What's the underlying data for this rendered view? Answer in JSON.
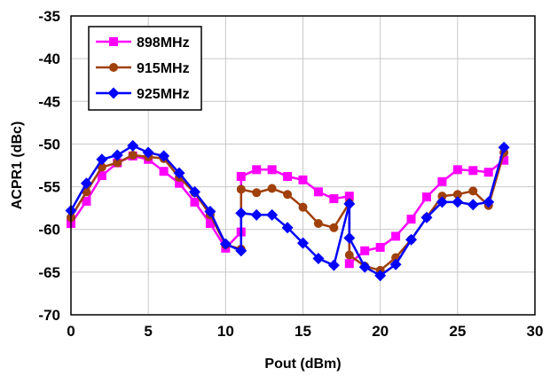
{
  "chart_data": {
    "type": "line",
    "xlabel": "Pout (dBm)",
    "ylabel": "ACPR1 (dBc)",
    "xlim": [
      0,
      30
    ],
    "ylim": [
      -70,
      -35
    ],
    "xticks": [
      0,
      5,
      10,
      15,
      20,
      25,
      30
    ],
    "yticks": [
      -35,
      -40,
      -45,
      -50,
      -55,
      -60,
      -65,
      -70
    ],
    "grid": true,
    "legend_position": "top-left",
    "series": [
      {
        "name": "898MHz",
        "color": "#ff00ff",
        "marker": "square",
        "points": [
          [
            0,
            -59.3
          ],
          [
            1,
            -56.7
          ],
          [
            2,
            -53.7
          ],
          [
            3,
            -52.2
          ],
          [
            4,
            -51.4
          ],
          [
            5,
            -51.8
          ],
          [
            6,
            -53.2
          ],
          [
            7,
            -54.6
          ],
          [
            8,
            -56.8
          ],
          [
            9,
            -59.3
          ],
          [
            10,
            -62.2
          ],
          [
            11,
            -60.3
          ],
          [
            11,
            -53.8
          ],
          [
            12,
            -53.0
          ],
          [
            13,
            -53.0
          ],
          [
            14,
            -53.8
          ],
          [
            15,
            -54.2
          ],
          [
            16,
            -55.6
          ],
          [
            17,
            -56.4
          ],
          [
            18,
            -56.1
          ],
          [
            18,
            -64.0
          ],
          [
            19,
            -62.5
          ],
          [
            20,
            -62.1
          ],
          [
            21,
            -60.8
          ],
          [
            22,
            -58.8
          ],
          [
            23,
            -56.2
          ],
          [
            24,
            -54.4
          ],
          [
            25,
            -53.0
          ],
          [
            26,
            -53.1
          ],
          [
            27,
            -53.3
          ],
          [
            28,
            -51.9
          ]
        ]
      },
      {
        "name": "915MHz",
        "color": "#a0400a",
        "marker": "circle",
        "points": [
          [
            0,
            -58.6
          ],
          [
            1,
            -55.6
          ],
          [
            2,
            -52.7
          ],
          [
            3,
            -52.2
          ],
          [
            4,
            -51.3
          ],
          [
            5,
            -51.5
          ],
          [
            6,
            -51.7
          ],
          [
            7,
            -53.9
          ],
          [
            8,
            -55.7
          ],
          [
            9,
            -58.3
          ],
          [
            10,
            -61.8
          ],
          [
            11,
            -62.3
          ],
          [
            11,
            -55.3
          ],
          [
            12,
            -55.7
          ],
          [
            13,
            -55.2
          ],
          [
            14,
            -55.9
          ],
          [
            15,
            -57.4
          ],
          [
            16,
            -59.3
          ],
          [
            17,
            -59.8
          ],
          [
            18,
            -56.9
          ],
          [
            18,
            -63.0
          ],
          [
            19,
            -64.3
          ],
          [
            20,
            -64.8
          ],
          [
            21,
            -63.3
          ],
          [
            22,
            -61.2
          ],
          [
            23,
            -58.6
          ],
          [
            24,
            -56.1
          ],
          [
            25,
            -55.9
          ],
          [
            26,
            -55.5
          ],
          [
            27,
            -57.2
          ],
          [
            28,
            -51.0
          ]
        ]
      },
      {
        "name": "925MHz",
        "color": "#0000ff",
        "marker": "diamond",
        "points": [
          [
            0,
            -57.8
          ],
          [
            1,
            -54.6
          ],
          [
            2,
            -51.8
          ],
          [
            3,
            -51.3
          ],
          [
            4,
            -50.2
          ],
          [
            5,
            -51.0
          ],
          [
            6,
            -51.4
          ],
          [
            7,
            -53.4
          ],
          [
            8,
            -55.6
          ],
          [
            9,
            -57.9
          ],
          [
            10,
            -61.7
          ],
          [
            11,
            -62.5
          ],
          [
            11,
            -58.1
          ],
          [
            12,
            -58.3
          ],
          [
            13,
            -58.3
          ],
          [
            14,
            -59.8
          ],
          [
            15,
            -61.6
          ],
          [
            16,
            -63.4
          ],
          [
            17,
            -64.2
          ],
          [
            18,
            -57.0
          ],
          [
            18,
            -61.0
          ],
          [
            19,
            -64.4
          ],
          [
            20,
            -65.4
          ],
          [
            21,
            -64.1
          ],
          [
            22,
            -61.2
          ],
          [
            23,
            -58.6
          ],
          [
            24,
            -56.8
          ],
          [
            25,
            -56.8
          ],
          [
            26,
            -57.1
          ],
          [
            27,
            -56.8
          ],
          [
            28,
            -50.4
          ]
        ]
      }
    ]
  }
}
